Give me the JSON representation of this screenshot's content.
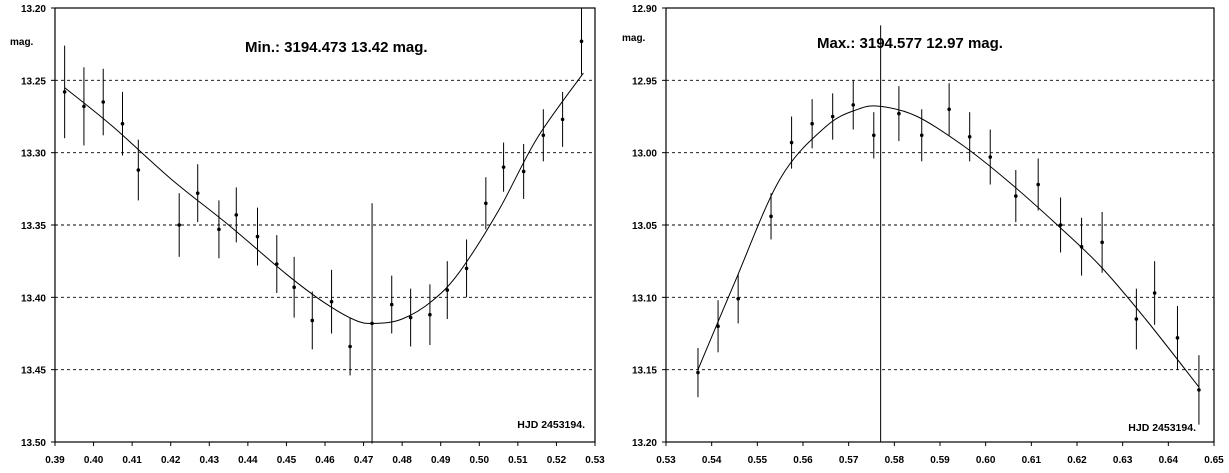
{
  "chart_data": [
    {
      "type": "scatter",
      "annotation": "Min.: 3194.473  13.42 mag.",
      "ylabel": "mag.",
      "corner_label": "HJD 2453194.",
      "xlim": [
        0.39,
        0.53
      ],
      "ylim": [
        13.2,
        13.5
      ],
      "y_inverted": true,
      "grid": "horizontal dashed",
      "xticks": [
        "0.39",
        "0.40",
        "0.41",
        "0.42",
        "0.43",
        "0.44",
        "0.45",
        "0.46",
        "0.47",
        "0.48",
        "0.49",
        "0.50",
        "0.51",
        "0.52",
        "0.53"
      ],
      "yticks": [
        "13.20",
        "13.25",
        "13.30",
        "13.35",
        "13.40",
        "13.45",
        "13.50"
      ],
      "points": {
        "x": [
          0.3925,
          0.3975,
          0.4025,
          0.4075,
          0.4116,
          0.4222,
          0.427,
          0.4325,
          0.437,
          0.4425,
          0.4475,
          0.452,
          0.4567,
          0.4617,
          0.4665,
          0.4722,
          0.4773,
          0.4822,
          0.4872,
          0.4917,
          0.4967,
          0.5017,
          0.5063,
          0.5115,
          0.5166,
          0.5216,
          0.5265
        ],
        "y": [
          13.258,
          13.268,
          13.265,
          13.28,
          13.312,
          13.35,
          13.328,
          13.353,
          13.343,
          13.358,
          13.377,
          13.393,
          13.416,
          13.403,
          13.434,
          13.418,
          13.405,
          13.414,
          13.412,
          13.395,
          13.38,
          13.335,
          13.31,
          13.313,
          13.288,
          13.277,
          13.223
        ],
        "err": [
          0.032,
          0.027,
          0.023,
          0.022,
          0.021,
          0.022,
          0.02,
          0.02,
          0.019,
          0.02,
          0.02,
          0.021,
          0.02,
          0.022,
          0.02,
          0.083,
          0.02,
          0.02,
          0.021,
          0.02,
          0.02,
          0.018,
          0.017,
          0.019,
          0.018,
          0.019,
          0.023
        ]
      },
      "fit_curve": {
        "x": [
          0.3925,
          0.405,
          0.42,
          0.435,
          0.45,
          0.46,
          0.468,
          0.473,
          0.48,
          0.488,
          0.495,
          0.505,
          0.515,
          0.527
        ],
        "y": [
          13.255,
          13.282,
          13.318,
          13.35,
          13.384,
          13.404,
          13.416,
          13.418,
          13.415,
          13.402,
          13.382,
          13.34,
          13.29,
          13.245
        ]
      }
    },
    {
      "type": "scatter",
      "annotation": "Max.: 3194.577  12.97 mag.",
      "ylabel": "mag.",
      "corner_label": "HJD 2453194.",
      "xlim": [
        0.53,
        0.65
      ],
      "ylim": [
        12.9,
        13.2
      ],
      "y_inverted": true,
      "grid": "horizontal dashed",
      "xticks": [
        "0.53",
        "0.54",
        "0.55",
        "0.56",
        "0.57",
        "0.58",
        "0.59",
        "0.60",
        "0.61",
        "0.62",
        "0.63",
        "0.64",
        "0.65"
      ],
      "yticks": [
        "12.90",
        "12.95",
        "13.00",
        "13.05",
        "13.10",
        "13.15",
        "13.20"
      ],
      "points": {
        "x": [
          0.537,
          0.5414,
          0.5458,
          0.553,
          0.5575,
          0.562,
          0.5665,
          0.571,
          0.5755,
          0.581,
          0.586,
          0.592,
          0.5965,
          0.601,
          0.6066,
          0.6115,
          0.6164,
          0.621,
          0.6255,
          0.633,
          0.637,
          0.642,
          0.6467
        ],
        "y": [
          13.152,
          13.12,
          13.101,
          13.044,
          12.993,
          12.98,
          12.975,
          12.967,
          12.988,
          12.973,
          12.988,
          12.97,
          12.989,
          13.003,
          13.03,
          13.022,
          13.05,
          13.065,
          13.062,
          13.115,
          13.097,
          13.128,
          13.164
        ],
        "err": [
          0.017,
          0.018,
          0.017,
          0.016,
          0.018,
          0.017,
          0.016,
          0.017,
          0.016,
          0.019,
          0.018,
          0.018,
          0.017,
          0.019,
          0.018,
          0.018,
          0.019,
          0.02,
          0.021,
          0.021,
          0.022,
          0.022,
          0.024
        ]
      },
      "center_bar": {
        "x": 0.577,
        "y_top": 12.912,
        "y_bottom": 13.2
      },
      "fit_curve": {
        "x": [
          0.537,
          0.545,
          0.555,
          0.565,
          0.572,
          0.577,
          0.585,
          0.595,
          0.605,
          0.615,
          0.625,
          0.635,
          0.6467
        ],
        "y": [
          13.15,
          13.09,
          13.018,
          12.982,
          12.97,
          12.968,
          12.975,
          12.995,
          13.02,
          13.048,
          13.078,
          13.115,
          13.162
        ]
      }
    }
  ]
}
